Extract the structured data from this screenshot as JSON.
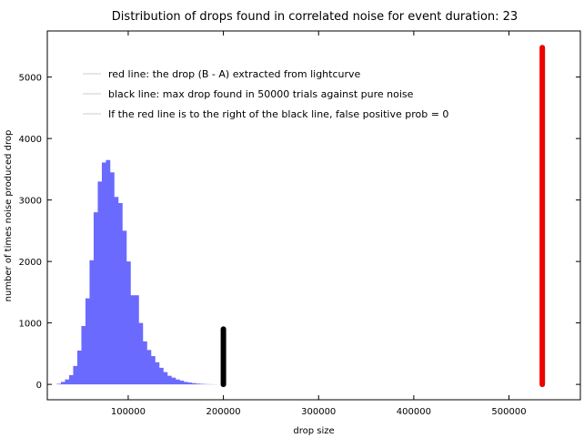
{
  "chart_data": {
    "type": "bar",
    "title": "Distribution of drops found in correlated noise for event duration: 23",
    "xlabel": "drop size",
    "ylabel": "number of times noise produced drop",
    "xlim": [
      15000,
      575000
    ],
    "ylim": [
      -250,
      5750
    ],
    "x_ticks": [
      100000,
      200000,
      300000,
      400000,
      500000
    ],
    "x_tick_labels": [
      "100000",
      "200000",
      "300000",
      "400000",
      "500000"
    ],
    "y_ticks": [
      0,
      1000,
      2000,
      3000,
      4000,
      5000
    ],
    "y_tick_labels": [
      "0",
      "1000",
      "2000",
      "3000",
      "4000",
      "5000"
    ],
    "histogram": {
      "bin_width": 4300,
      "color": "#6a6aff",
      "bin_starts": [
        25000,
        29300,
        33600,
        37900,
        42200,
        46500,
        50800,
        55100,
        59400,
        63700,
        68000,
        72300,
        76600,
        80900,
        85200,
        89500,
        93800,
        98100,
        102400,
        106700,
        111000,
        115300,
        119600,
        123900,
        128200,
        132500,
        136800,
        141100,
        145400,
        149700,
        154000,
        158300,
        162600,
        166900,
        171200,
        175500,
        179800,
        184100,
        188400,
        192700
      ],
      "counts": [
        10,
        40,
        80,
        150,
        300,
        550,
        950,
        1400,
        2020,
        2800,
        3300,
        3610,
        3650,
        3450,
        3050,
        2950,
        2500,
        2000,
        1450,
        1450,
        1000,
        700,
        560,
        460,
        360,
        270,
        200,
        140,
        110,
        80,
        60,
        40,
        30,
        20,
        12,
        8,
        5,
        3,
        2,
        1
      ]
    },
    "lines": [
      {
        "name": "red",
        "x": 535000,
        "y_start": 0,
        "y_end": 5480,
        "color": "#ee0000"
      },
      {
        "name": "black",
        "x": 200000,
        "y_start": 0,
        "y_end": 900,
        "color": "#000000"
      }
    ],
    "legend": {
      "placement": "top-left",
      "entries": [
        "red line: the drop (B - A) extracted from lightcurve",
        "black line: max drop found in 50000 trials against pure noise",
        "If the red line is to the right of the black line, false positive prob = 0"
      ]
    },
    "grid": false
  }
}
